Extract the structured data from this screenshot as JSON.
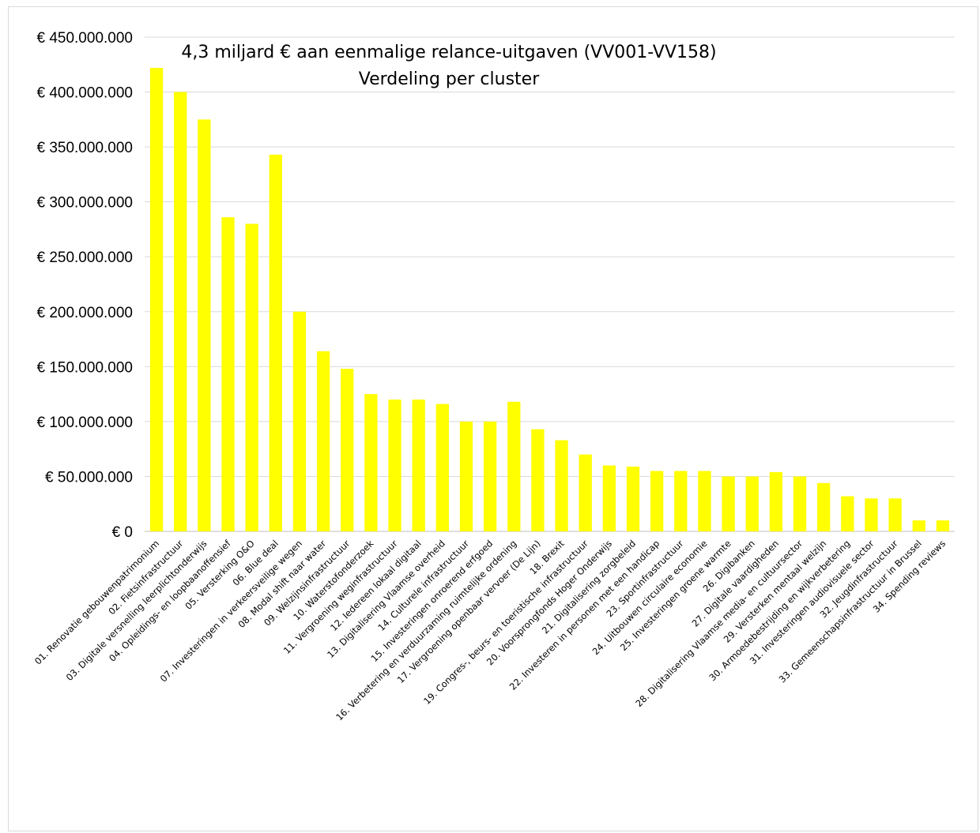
{
  "chart_data": {
    "type": "bar",
    "title": "4,3 miljard € aan eenmalige relance-uitgaven (VV001-VV158)",
    "subtitle": "Verdeling per cluster",
    "xlabel": "",
    "ylabel": "",
    "ylim": [
      0,
      450000000
    ],
    "yticks": [
      "€ 0",
      "€ 50.000.000",
      "€ 100.000.000",
      "€ 150.000.000",
      "€ 200.000.000",
      "€ 250.000.000",
      "€ 300.000.000",
      "€ 350.000.000",
      "€ 400.000.000",
      "€ 450.000.000"
    ],
    "grid": true,
    "legend": "none",
    "bar_color": "#ffff00",
    "categories": [
      "01. Renovatie gebouwenpatrimonium",
      "02. Fietsinfrastructuur",
      "03. Digitale versnelling leerplichtonderwijs",
      "04. Opleidings- en loopbaanoffensief",
      "05. Versterking O&O",
      "06. Blue deal",
      "07. Investeringen in verkeersveilige wegen",
      "08. Modal shift naar water",
      "09. Welzijnsinfrastructuur",
      "10. Waterstofonderzoek",
      "11. Vergroening weginfrastructuur",
      "12. Iedereen lokaal digitaal",
      "13. Digitalisering Vlaamse overheid",
      "14. Culturele infrastructuur",
      "15. Investeringen onroerend erfgoed",
      "16. Verbetering en verduurzaming ruimtelijke ordening",
      "17. Vergroening openbaar vervoer (De Lijn)",
      "18. Brexit",
      "19. Congres-, beurs- en toeristische infrastructuur",
      "20. Voorsprongfonds Hoger Onderwijs",
      "21. Digitalisering zorgbeleid",
      "22. Investeren in personen met een handicap",
      "23. Sportinfrastructuur",
      "24. Uitbouwen circulaire economie",
      "25. Investeringen groene warmte",
      "26. Digibanken",
      "27. Digitale vaardigheden",
      "28. Digitalisering Vlaamse media- en cultuursector",
      "29. Versterken mentaal welzijn",
      "30. Armoedebestrijding en wijkverbetering",
      "31. Investeringen audiovisuele sector",
      "32. Jeugdinfrastructuur",
      "33. Gemeenschapsinfrastructuur in Brussel",
      "34. Spending reviews"
    ],
    "values": [
      422000000,
      400000000,
      375000000,
      286000000,
      280000000,
      343000000,
      200000000,
      164000000,
      148000000,
      125000000,
      120000000,
      120000000,
      116000000,
      100000000,
      100000000,
      118000000,
      93000000,
      83000000,
      70000000,
      60000000,
      59000000,
      55000000,
      55000000,
      55000000,
      50000000,
      50000000,
      54000000,
      50000000,
      44000000,
      32000000,
      30000000,
      30000000,
      10000000,
      10000000
    ]
  }
}
